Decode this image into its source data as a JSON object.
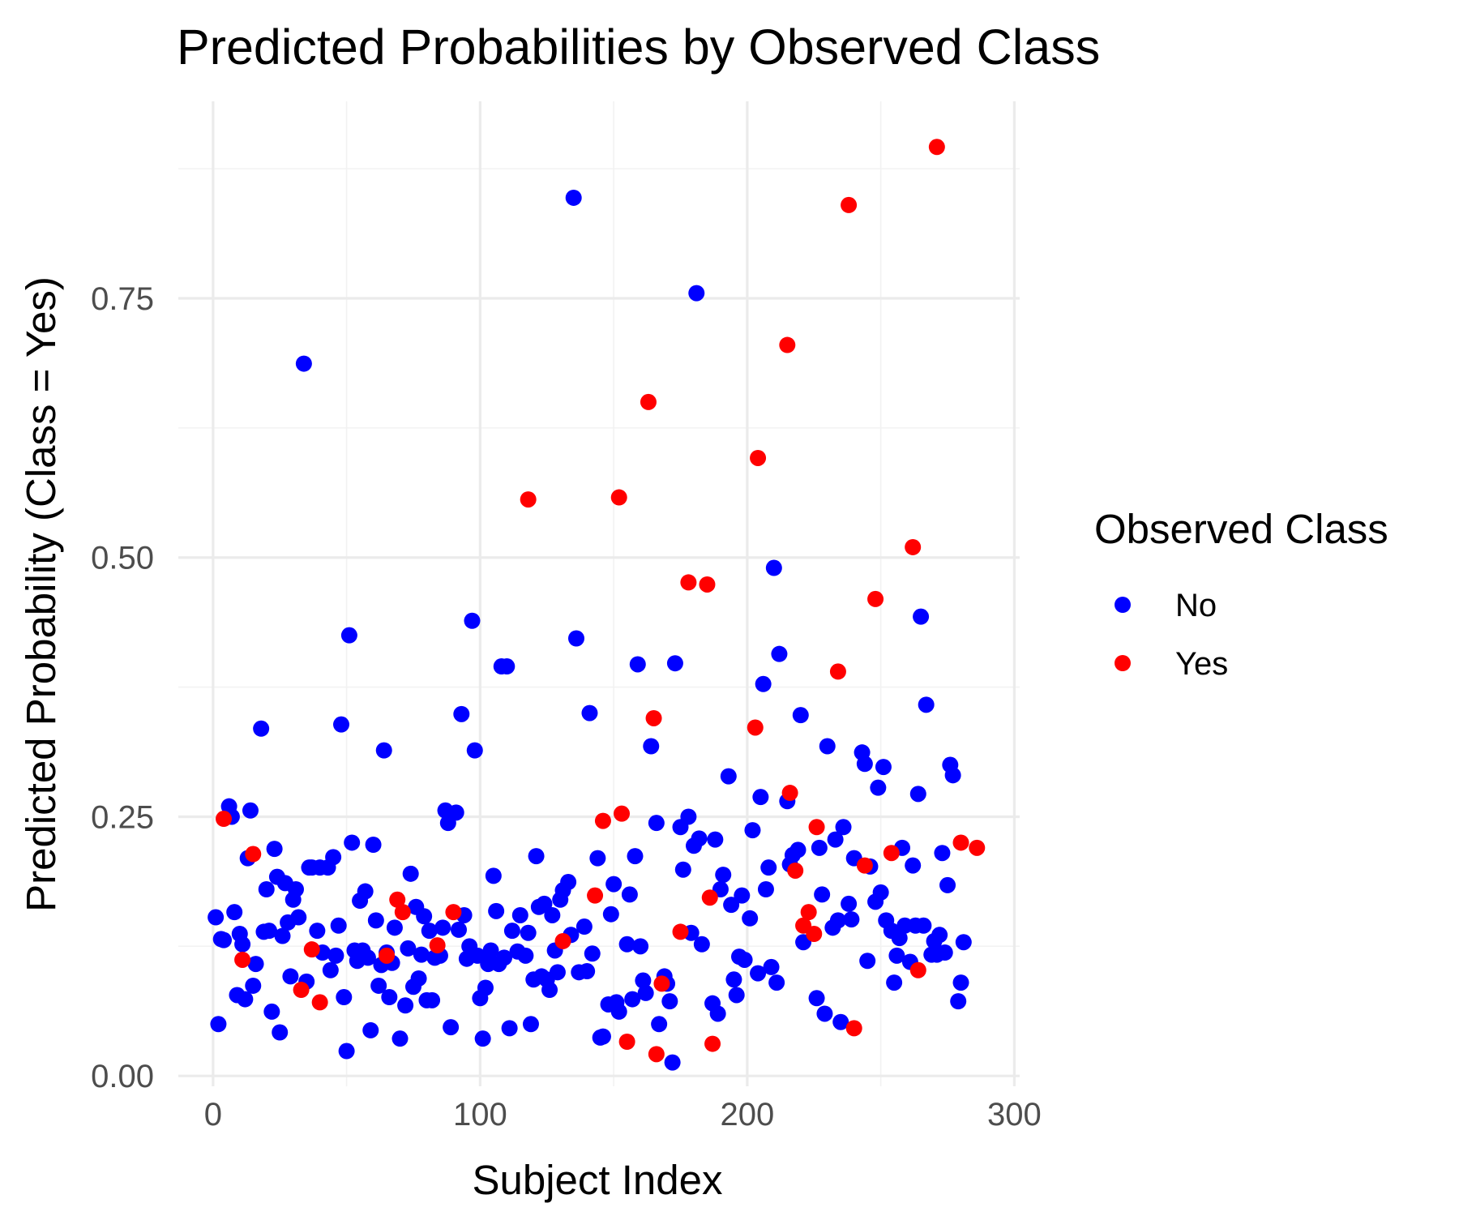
{
  "chart_data": {
    "type": "scatter",
    "title": "Predicted Probabilities by Observed Class",
    "xlabel": "Subject Index",
    "ylabel": "Predicted Probability (Class = Yes)",
    "xlim": [
      -13,
      302
    ],
    "ylim": [
      -0.01,
      0.94
    ],
    "x_ticks": [
      0,
      100,
      200,
      300
    ],
    "x_tick_labels": [
      "0",
      "100",
      "200",
      "300"
    ],
    "y_ticks": [
      0.0,
      0.25,
      0.5,
      0.75
    ],
    "y_tick_labels": [
      "0.00",
      "0.25",
      "0.50",
      "0.75"
    ],
    "grid": true,
    "legend": {
      "title": "Observed Class",
      "position": "right"
    },
    "series": [
      {
        "name": "No",
        "color": "#0000ff",
        "points": [
          [
            1,
            0.153
          ],
          [
            2,
            0.05
          ],
          [
            3,
            0.132
          ],
          [
            4,
            0.131
          ],
          [
            6,
            0.26
          ],
          [
            7,
            0.25
          ],
          [
            8,
            0.158
          ],
          [
            9,
            0.078
          ],
          [
            10,
            0.137
          ],
          [
            11,
            0.127
          ],
          [
            12,
            0.074
          ],
          [
            13,
            0.21
          ],
          [
            14,
            0.256
          ],
          [
            15,
            0.087
          ],
          [
            16,
            0.108
          ],
          [
            18,
            0.335
          ],
          [
            19,
            0.139
          ],
          [
            20,
            0.18
          ],
          [
            21,
            0.14
          ],
          [
            22,
            0.062
          ],
          [
            23,
            0.219
          ],
          [
            24,
            0.192
          ],
          [
            25,
            0.042
          ],
          [
            26,
            0.135
          ],
          [
            27,
            0.186
          ],
          [
            28,
            0.148
          ],
          [
            29,
            0.096
          ],
          [
            30,
            0.17
          ],
          [
            31,
            0.18
          ],
          [
            32,
            0.153
          ],
          [
            34,
            0.687
          ],
          [
            35,
            0.091
          ],
          [
            36,
            0.201
          ],
          [
            37,
            0.201
          ],
          [
            39,
            0.14
          ],
          [
            40,
            0.201
          ],
          [
            41,
            0.119
          ],
          [
            43,
            0.201
          ],
          [
            44,
            0.102
          ],
          [
            45,
            0.211
          ],
          [
            46,
            0.116
          ],
          [
            47,
            0.145
          ],
          [
            48,
            0.339
          ],
          [
            49,
            0.076
          ],
          [
            50,
            0.024
          ],
          [
            51,
            0.425
          ],
          [
            52,
            0.225
          ],
          [
            53,
            0.121
          ],
          [
            54,
            0.111
          ],
          [
            55,
            0.169
          ],
          [
            56,
            0.121
          ],
          [
            57,
            0.178
          ],
          [
            58,
            0.114
          ],
          [
            59,
            0.044
          ],
          [
            60,
            0.223
          ],
          [
            61,
            0.15
          ],
          [
            62,
            0.087
          ],
          [
            63,
            0.107
          ],
          [
            64,
            0.314
          ],
          [
            65,
            0.119
          ],
          [
            66,
            0.076
          ],
          [
            67,
            0.109
          ],
          [
            68,
            0.143
          ],
          [
            70,
            0.036
          ],
          [
            72,
            0.068
          ],
          [
            73,
            0.123
          ],
          [
            74,
            0.195
          ],
          [
            75,
            0.086
          ],
          [
            76,
            0.163
          ],
          [
            77,
            0.094
          ],
          [
            78,
            0.117
          ],
          [
            79,
            0.154
          ],
          [
            80,
            0.073
          ],
          [
            81,
            0.14
          ],
          [
            82,
            0.073
          ],
          [
            83,
            0.114
          ],
          [
            85,
            0.116
          ],
          [
            86,
            0.143
          ],
          [
            87,
            0.256
          ],
          [
            88,
            0.244
          ],
          [
            89,
            0.047
          ],
          [
            91,
            0.254
          ],
          [
            92,
            0.141
          ],
          [
            93,
            0.349
          ],
          [
            94,
            0.155
          ],
          [
            95,
            0.113
          ],
          [
            96,
            0.125
          ],
          [
            97,
            0.439
          ],
          [
            98,
            0.314
          ],
          [
            99,
            0.116
          ],
          [
            100,
            0.075
          ],
          [
            101,
            0.036
          ],
          [
            102,
            0.085
          ],
          [
            103,
            0.108
          ],
          [
            104,
            0.121
          ],
          [
            105,
            0.193
          ],
          [
            106,
            0.159
          ],
          [
            107,
            0.108
          ],
          [
            108,
            0.395
          ],
          [
            109,
            0.114
          ],
          [
            110,
            0.395
          ],
          [
            111,
            0.046
          ],
          [
            112,
            0.14
          ],
          [
            114,
            0.12
          ],
          [
            115,
            0.155
          ],
          [
            117,
            0.116
          ],
          [
            118,
            0.138
          ],
          [
            119,
            0.05
          ],
          [
            120,
            0.093
          ],
          [
            121,
            0.212
          ],
          [
            122,
            0.163
          ],
          [
            123,
            0.096
          ],
          [
            124,
            0.166
          ],
          [
            125,
            0.093
          ],
          [
            126,
            0.083
          ],
          [
            127,
            0.155
          ],
          [
            128,
            0.121
          ],
          [
            129,
            0.1
          ],
          [
            130,
            0.17
          ],
          [
            131,
            0.179
          ],
          [
            133,
            0.187
          ],
          [
            134,
            0.136
          ],
          [
            135,
            0.847
          ],
          [
            136,
            0.422
          ],
          [
            137,
            0.1
          ],
          [
            139,
            0.144
          ],
          [
            140,
            0.101
          ],
          [
            141,
            0.35
          ],
          [
            142,
            0.118
          ],
          [
            144,
            0.21
          ],
          [
            145,
            0.037
          ],
          [
            146,
            0.038
          ],
          [
            148,
            0.069
          ],
          [
            149,
            0.156
          ],
          [
            150,
            0.185
          ],
          [
            151,
            0.071
          ],
          [
            152,
            0.062
          ],
          [
            155,
            0.127
          ],
          [
            156,
            0.175
          ],
          [
            157,
            0.074
          ],
          [
            158,
            0.212
          ],
          [
            159,
            0.397
          ],
          [
            160,
            0.125
          ],
          [
            161,
            0.092
          ],
          [
            162,
            0.08
          ],
          [
            164,
            0.318
          ],
          [
            166,
            0.244
          ],
          [
            167,
            0.05
          ],
          [
            169,
            0.096
          ],
          [
            170,
            0.089
          ],
          [
            171,
            0.072
          ],
          [
            172,
            0.013
          ],
          [
            173,
            0.398
          ],
          [
            175,
            0.24
          ],
          [
            176,
            0.199
          ],
          [
            178,
            0.25
          ],
          [
            179,
            0.138
          ],
          [
            180,
            0.222
          ],
          [
            181,
            0.755
          ],
          [
            182,
            0.229
          ],
          [
            183,
            0.127
          ],
          [
            187,
            0.07
          ],
          [
            188,
            0.228
          ],
          [
            189,
            0.06
          ],
          [
            190,
            0.18
          ],
          [
            191,
            0.194
          ],
          [
            193,
            0.289
          ],
          [
            194,
            0.165
          ],
          [
            195,
            0.093
          ],
          [
            196,
            0.078
          ],
          [
            197,
            0.115
          ],
          [
            198,
            0.174
          ],
          [
            199,
            0.112
          ],
          [
            201,
            0.152
          ],
          [
            202,
            0.237
          ],
          [
            204,
            0.099
          ],
          [
            205,
            0.269
          ],
          [
            206,
            0.378
          ],
          [
            207,
            0.18
          ],
          [
            208,
            0.201
          ],
          [
            209,
            0.105
          ],
          [
            210,
            0.49
          ],
          [
            211,
            0.09
          ],
          [
            212,
            0.407
          ],
          [
            215,
            0.265
          ],
          [
            216,
            0.204
          ],
          [
            217,
            0.213
          ],
          [
            219,
            0.218
          ],
          [
            220,
            0.348
          ],
          [
            221,
            0.129
          ],
          [
            226,
            0.075
          ],
          [
            227,
            0.22
          ],
          [
            228,
            0.175
          ],
          [
            229,
            0.06
          ],
          [
            230,
            0.318
          ],
          [
            232,
            0.143
          ],
          [
            233,
            0.228
          ],
          [
            234,
            0.15
          ],
          [
            235,
            0.052
          ],
          [
            236,
            0.24
          ],
          [
            238,
            0.166
          ],
          [
            239,
            0.151
          ],
          [
            240,
            0.21
          ],
          [
            243,
            0.312
          ],
          [
            244,
            0.301
          ],
          [
            245,
            0.111
          ],
          [
            246,
            0.202
          ],
          [
            248,
            0.168
          ],
          [
            249,
            0.278
          ],
          [
            250,
            0.177
          ],
          [
            251,
            0.298
          ],
          [
            252,
            0.15
          ],
          [
            254,
            0.14
          ],
          [
            255,
            0.09
          ],
          [
            256,
            0.116
          ],
          [
            257,
            0.133
          ],
          [
            258,
            0.22
          ],
          [
            259,
            0.145
          ],
          [
            261,
            0.11
          ],
          [
            262,
            0.203
          ],
          [
            263,
            0.145
          ],
          [
            264,
            0.272
          ],
          [
            265,
            0.443
          ],
          [
            266,
            0.145
          ],
          [
            267,
            0.358
          ],
          [
            269,
            0.117
          ],
          [
            270,
            0.13
          ],
          [
            271,
            0.117
          ],
          [
            272,
            0.136
          ],
          [
            273,
            0.215
          ],
          [
            274,
            0.119
          ],
          [
            275,
            0.184
          ],
          [
            276,
            0.3
          ],
          [
            277,
            0.29
          ],
          [
            279,
            0.072
          ],
          [
            280,
            0.09
          ],
          [
            281,
            0.129
          ]
        ]
      },
      {
        "name": "Yes",
        "color": "#ff0000",
        "points": [
          [
            4,
            0.248
          ],
          [
            11,
            0.112
          ],
          [
            15,
            0.214
          ],
          [
            33,
            0.083
          ],
          [
            37,
            0.122
          ],
          [
            40,
            0.071
          ],
          [
            65,
            0.116
          ],
          [
            69,
            0.17
          ],
          [
            71,
            0.158
          ],
          [
            84,
            0.126
          ],
          [
            90,
            0.158
          ],
          [
            118,
            0.556
          ],
          [
            131,
            0.13
          ],
          [
            143,
            0.174
          ],
          [
            146,
            0.246
          ],
          [
            152,
            0.558
          ],
          [
            153,
            0.253
          ],
          [
            155,
            0.033
          ],
          [
            163,
            0.65
          ],
          [
            165,
            0.345
          ],
          [
            166,
            0.021
          ],
          [
            168,
            0.089
          ],
          [
            175,
            0.139
          ],
          [
            178,
            0.476
          ],
          [
            185,
            0.474
          ],
          [
            186,
            0.172
          ],
          [
            187,
            0.031
          ],
          [
            203,
            0.336
          ],
          [
            204,
            0.596
          ],
          [
            215,
            0.705
          ],
          [
            216,
            0.273
          ],
          [
            218,
            0.198
          ],
          [
            221,
            0.145
          ],
          [
            223,
            0.158
          ],
          [
            225,
            0.137
          ],
          [
            226,
            0.24
          ],
          [
            234,
            0.39
          ],
          [
            238,
            0.84
          ],
          [
            240,
            0.046
          ],
          [
            244,
            0.203
          ],
          [
            248,
            0.46
          ],
          [
            254,
            0.215
          ],
          [
            262,
            0.51
          ],
          [
            264,
            0.102
          ],
          [
            271,
            0.896
          ],
          [
            280,
            0.225
          ],
          [
            286,
            0.22
          ]
        ]
      }
    ]
  }
}
